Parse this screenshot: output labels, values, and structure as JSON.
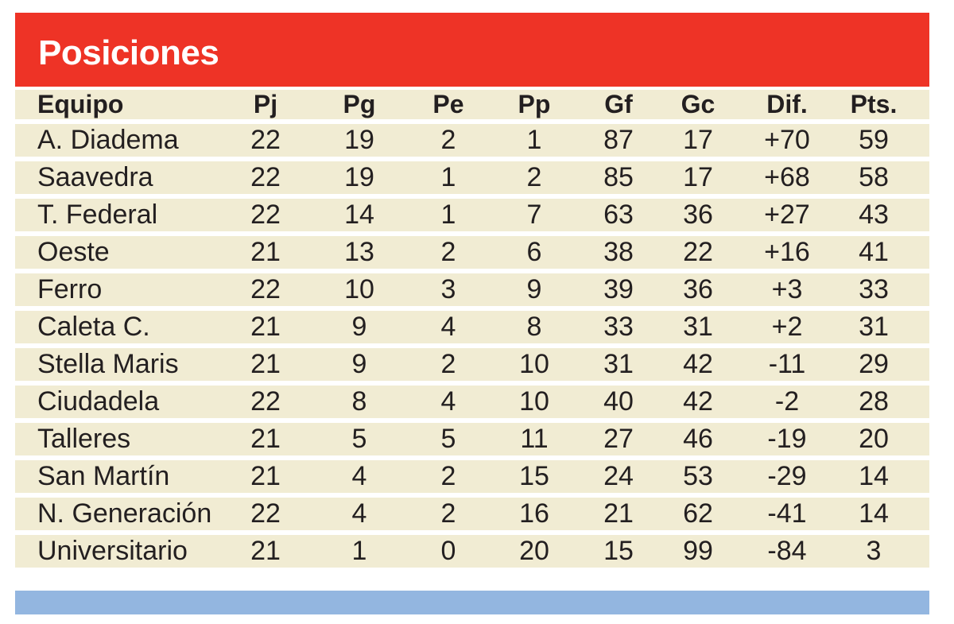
{
  "title": "Posiciones",
  "colors": {
    "header": "#ee3326",
    "row": "#f1ecd3",
    "footer": "#93b6e0"
  },
  "columns": [
    "Equipo",
    "Pj",
    "Pg",
    "Pe",
    "Pp",
    "Gf",
    "Gc",
    "Dif.",
    "Pts."
  ],
  "rows": [
    [
      "A. Diadema",
      "22",
      "19",
      "2",
      "1",
      "87",
      "17",
      "+70",
      "59"
    ],
    [
      "Saavedra",
      "22",
      "19",
      "1",
      "2",
      "85",
      "17",
      "+68",
      "58"
    ],
    [
      "T. Federal",
      "22",
      "14",
      "1",
      "7",
      "63",
      "36",
      "+27",
      "43"
    ],
    [
      "Oeste",
      "21",
      "13",
      "2",
      "6",
      "38",
      "22",
      "+16",
      "41"
    ],
    [
      "Ferro",
      "22",
      "10",
      "3",
      "9",
      "39",
      "36",
      "+3",
      "33"
    ],
    [
      "Caleta C.",
      "21",
      "9",
      "4",
      "8",
      "33",
      "31",
      "+2",
      "31"
    ],
    [
      "Stella Maris",
      "21",
      "9",
      "2",
      "10",
      "31",
      "42",
      "-11",
      "29"
    ],
    [
      "Ciudadela",
      "22",
      "8",
      "4",
      "10",
      "40",
      "42",
      "-2",
      "28"
    ],
    [
      "Talleres",
      "21",
      "5",
      "5",
      "11",
      "27",
      "46",
      "-19",
      "20"
    ],
    [
      "San Martín",
      "21",
      "4",
      "2",
      "15",
      "24",
      "53",
      "-29",
      "14"
    ],
    [
      "N. Generación",
      "22",
      "4",
      "2",
      "16",
      "21",
      "62",
      "-41",
      "14"
    ],
    [
      "Universitario",
      "21",
      "1",
      "0",
      "20",
      "15",
      "99",
      "-84",
      "3"
    ]
  ]
}
